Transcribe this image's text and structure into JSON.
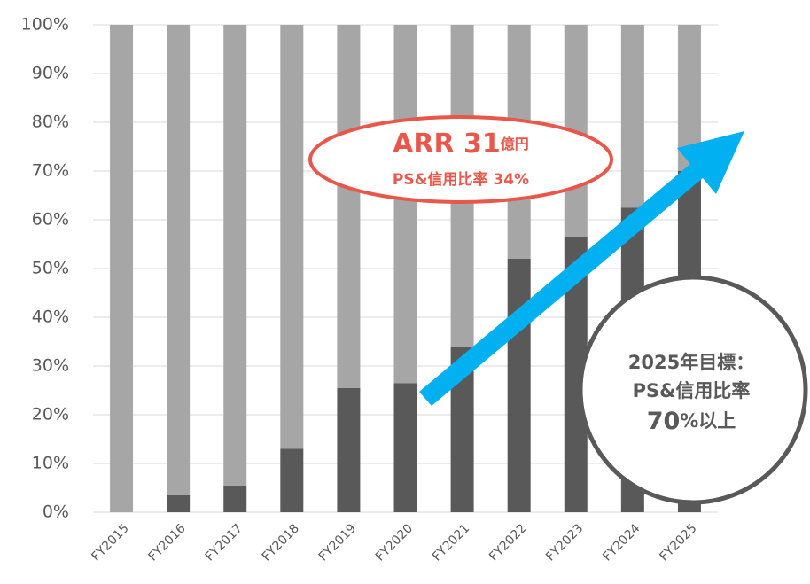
{
  "chart_data": {
    "type": "stacked_bar",
    "categories": [
      "FY2015",
      "FY2016",
      "FY2017",
      "FY2018",
      "FY2019",
      "FY2020",
      "FY2021",
      "FY2022",
      "FY2023",
      "FY2024",
      "FY2025"
    ],
    "series": [
      {
        "color": "#595959",
        "values": [
          0,
          3.5,
          5.5,
          13,
          25.5,
          26.5,
          34,
          52,
          56.5,
          62.5,
          70
        ]
      },
      {
        "color": "#a6a6a6",
        "values": [
          100,
          96.5,
          94.5,
          87,
          74.5,
          73.5,
          66,
          48,
          43.5,
          37.5,
          30
        ]
      }
    ],
    "ylim": [
      0,
      100
    ],
    "yticks": [
      {
        "value": 0,
        "label": "0%"
      },
      {
        "value": 10,
        "label": "10%"
      },
      {
        "value": 20,
        "label": "20%"
      },
      {
        "value": 30,
        "label": "30%"
      },
      {
        "value": 40,
        "label": "40%"
      },
      {
        "value": 50,
        "label": "50%"
      },
      {
        "value": 60,
        "label": "60%"
      },
      {
        "value": 70,
        "label": "70%"
      },
      {
        "value": 80,
        "label": "80%"
      },
      {
        "value": 90,
        "label": "90%"
      },
      {
        "value": 100,
        "label": "100%"
      }
    ],
    "grid": true,
    "annotations": [
      "ARR 31",
      "億円",
      "PS&信用比率 34%",
      "2025年目標：",
      "PS&信用比率",
      "70",
      "%以上"
    ]
  }
}
